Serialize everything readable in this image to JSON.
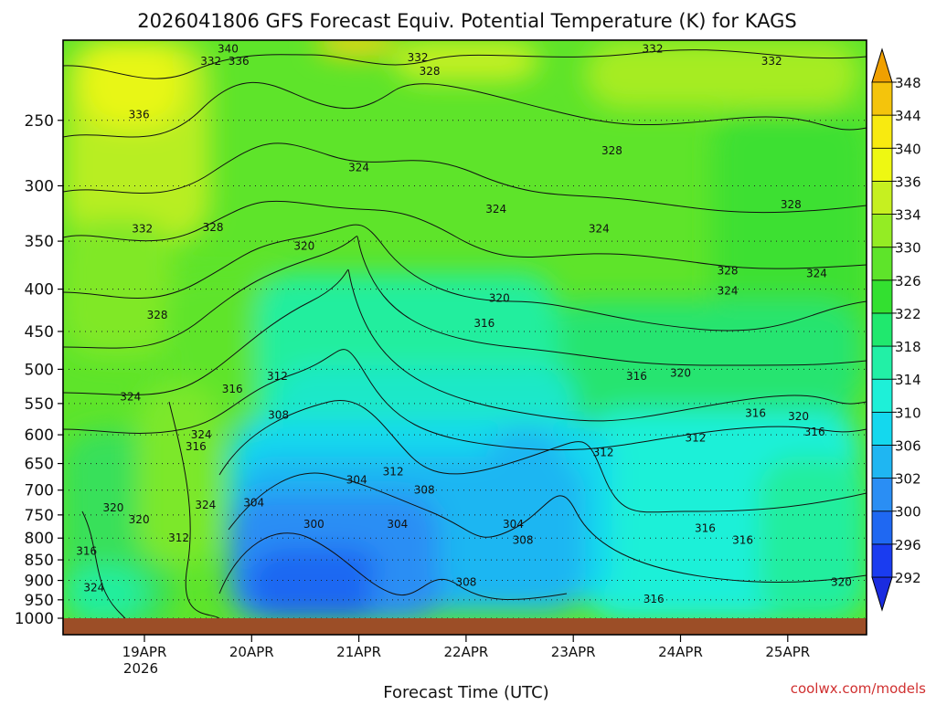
{
  "chart_data": {
    "type": "heatmap",
    "title": "2026041806 GFS Forecast Equiv. Potential Temperature (K) for KAGS",
    "xlabel": "Forecast Time (UTC)",
    "ylabel": "",
    "watermark": "coolwx.com/models",
    "y_scale": "log",
    "y_inverted": true,
    "y_ticks": [
      250,
      300,
      350,
      400,
      450,
      500,
      550,
      600,
      650,
      700,
      750,
      800,
      850,
      900,
      950,
      1000
    ],
    "ylim": [
      1000,
      200
    ],
    "x_ticks": [
      {
        "label": "19APR",
        "sub": "2026"
      },
      {
        "label": "20APR",
        "sub": ""
      },
      {
        "label": "21APR",
        "sub": ""
      },
      {
        "label": "22APR",
        "sub": ""
      },
      {
        "label": "23APR",
        "sub": ""
      },
      {
        "label": "24APR",
        "sub": ""
      },
      {
        "label": "25APR",
        "sub": ""
      }
    ],
    "grid": "dotted horizontal at pressure levels",
    "colorbar": {
      "levels": [
        292,
        296,
        300,
        302,
        306,
        310,
        314,
        318,
        322,
        326,
        330,
        334,
        336,
        340,
        344,
        348
      ],
      "colors": [
        "#1a3cf0",
        "#1f68f2",
        "#2a8ef4",
        "#1fb6f2",
        "#14d8ee",
        "#1ef0d8",
        "#22f0a6",
        "#20e86e",
        "#33e030",
        "#5ee42a",
        "#94ec24",
        "#c6f020",
        "#eef812",
        "#f8ea10",
        "#f4c40c",
        "#f0a000"
      ],
      "extend": "both"
    },
    "contour_labels": [
      {
        "v": "340",
        "t": 0.78,
        "p": 205
      },
      {
        "v": "336",
        "t": 0.88,
        "p": 212
      },
      {
        "v": "332",
        "t": 0.62,
        "p": 212
      },
      {
        "v": "332",
        "t": 2.55,
        "p": 210
      },
      {
        "v": "328",
        "t": 2.66,
        "p": 218
      },
      {
        "v": "332",
        "t": 4.74,
        "p": 205
      },
      {
        "v": "332",
        "t": 5.85,
        "p": 212
      },
      {
        "v": "336",
        "t": -0.05,
        "p": 246
      },
      {
        "v": "324",
        "t": 2.0,
        "p": 285
      },
      {
        "v": "328",
        "t": 4.36,
        "p": 272
      },
      {
        "v": "324",
        "t": 3.28,
        "p": 320
      },
      {
        "v": "324",
        "t": 4.24,
        "p": 338
      },
      {
        "v": "328",
        "t": 6.03,
        "p": 316
      },
      {
        "v": "332",
        "t": -0.02,
        "p": 338
      },
      {
        "v": "328",
        "t": 0.64,
        "p": 337
      },
      {
        "v": "320",
        "t": 1.49,
        "p": 355
      },
      {
        "v": "328",
        "t": 5.44,
        "p": 380
      },
      {
        "v": "324",
        "t": 5.44,
        "p": 402
      },
      {
        "v": "324",
        "t": 6.27,
        "p": 383
      },
      {
        "v": "320",
        "t": 3.31,
        "p": 410
      },
      {
        "v": "328",
        "t": 0.12,
        "p": 430
      },
      {
        "v": "316",
        "t": 3.17,
        "p": 440
      },
      {
        "v": "316",
        "t": 4.59,
        "p": 510
      },
      {
        "v": "320",
        "t": 5.0,
        "p": 505
      },
      {
        "v": "312",
        "t": 1.24,
        "p": 510
      },
      {
        "v": "316",
        "t": 0.82,
        "p": 528
      },
      {
        "v": "324",
        "t": -0.13,
        "p": 540
      },
      {
        "v": "308",
        "t": 1.25,
        "p": 568
      },
      {
        "v": "316",
        "t": 5.7,
        "p": 565
      },
      {
        "v": "320",
        "t": 6.1,
        "p": 570
      },
      {
        "v": "316",
        "t": 6.25,
        "p": 595
      },
      {
        "v": "324",
        "t": 0.53,
        "p": 600
      },
      {
        "v": "316",
        "t": 0.48,
        "p": 620
      },
      {
        "v": "312",
        "t": 5.14,
        "p": 605
      },
      {
        "v": "312",
        "t": 2.32,
        "p": 665
      },
      {
        "v": "312",
        "t": 4.28,
        "p": 630
      },
      {
        "v": "304",
        "t": 1.98,
        "p": 680
      },
      {
        "v": "308",
        "t": 2.61,
        "p": 700
      },
      {
        "v": "304",
        "t": 1.02,
        "p": 725
      },
      {
        "v": "324",
        "t": 0.57,
        "p": 730
      },
      {
        "v": "320",
        "t": -0.29,
        "p": 735
      },
      {
        "v": "320",
        "t": -0.05,
        "p": 760
      },
      {
        "v": "300",
        "t": 1.58,
        "p": 770
      },
      {
        "v": "304",
        "t": 2.36,
        "p": 770
      },
      {
        "v": "304",
        "t": 3.44,
        "p": 770
      },
      {
        "v": "308",
        "t": 3.53,
        "p": 805
      },
      {
        "v": "316",
        "t": 5.23,
        "p": 778
      },
      {
        "v": "316",
        "t": 5.58,
        "p": 805
      },
      {
        "v": "312",
        "t": 0.32,
        "p": 800
      },
      {
        "v": "316",
        "t": -0.54,
        "p": 830
      },
      {
        "v": "308",
        "t": 3.0,
        "p": 905
      },
      {
        "v": "320",
        "t": 6.5,
        "p": 905
      },
      {
        "v": "324",
        "t": -0.47,
        "p": 918
      },
      {
        "v": "316",
        "t": 4.75,
        "p": 948
      }
    ]
  }
}
